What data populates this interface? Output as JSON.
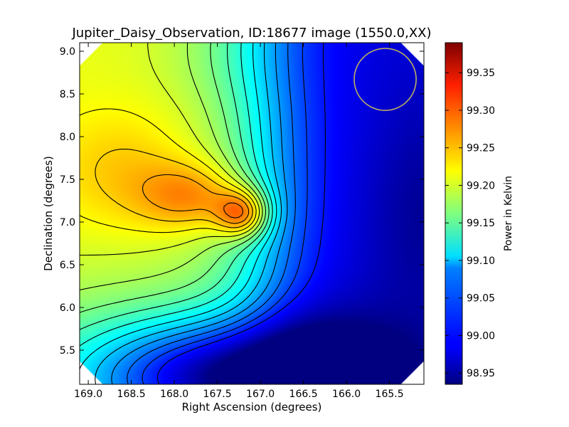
{
  "chart_data": {
    "type": "heatmap",
    "title": "Jupiter_Daisy_Observation, ID:18677 image (1550.0,XX)",
    "xlabel": "Right Ascension (degrees)",
    "ylabel": "Declination (degrees)",
    "colorbar_label": "Power in Kelvin",
    "colormap": "jet",
    "x_inverted": true,
    "xlim": [
      169.1,
      165.1
    ],
    "ylim": [
      5.1,
      9.1
    ],
    "clim": [
      98.935,
      99.39
    ],
    "x_ticks": [
      "169.0",
      "168.5",
      "168.0",
      "167.5",
      "167.0",
      "166.5",
      "166.0",
      "165.5"
    ],
    "y_ticks": [
      "5.5",
      "6.0",
      "6.5",
      "7.0",
      "7.5",
      "8.0",
      "8.5",
      "9.0"
    ],
    "colorbar_ticks": [
      "98.95",
      "99.00",
      "99.05",
      "99.10",
      "99.15",
      "99.20",
      "99.25",
      "99.30",
      "99.35"
    ],
    "features": [
      {
        "kind": "peak",
        "ra": 167.2,
        "dec": 7.1,
        "value": 99.39
      },
      {
        "kind": "secondary_bump",
        "ra": 168.6,
        "dec": 7.6,
        "value": 99.23
      },
      {
        "kind": "minimum",
        "ra": 165.1,
        "dec": 7.1,
        "value": 98.94
      },
      {
        "kind": "low_region",
        "ra": 167.3,
        "dec": 5.2,
        "value": 98.99
      }
    ],
    "beam_circle": {
      "ra": 165.55,
      "dec": 8.67,
      "radius_deg": 0.36,
      "color": "#c8b85a"
    },
    "contour_color": "#000000",
    "grid": false
  }
}
